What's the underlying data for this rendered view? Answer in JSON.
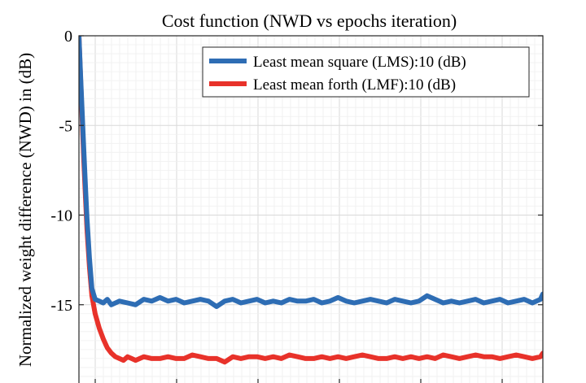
{
  "chart_data": {
    "type": "line",
    "title": "Cost function (NWD vs epochs iteration)",
    "xlabel": "",
    "ylabel": "Normalized weight difference (NWD) in (dB)",
    "ylim": [
      -19,
      0
    ],
    "yticks": [
      0,
      -5,
      -10,
      -15
    ],
    "ytick_labels": [
      "0",
      "-5",
      "-10",
      "-15"
    ],
    "grid": true,
    "legend_position": "top-right",
    "series": [
      {
        "name": "Least mean square (LMS):10 (dB)",
        "color": "#2e6db4",
        "x": [
          0,
          2,
          4,
          6,
          8,
          10,
          13,
          16,
          20,
          25,
          30,
          35,
          40,
          50,
          60,
          70,
          80,
          90,
          100,
          110,
          120,
          130,
          140,
          150,
          160,
          170,
          180,
          190,
          200,
          210,
          220,
          230,
          240,
          250,
          260,
          270,
          280,
          290,
          300,
          310,
          320,
          330,
          340,
          350,
          360,
          370,
          380,
          390,
          400,
          410,
          420,
          430,
          440,
          450,
          460,
          470,
          480,
          490,
          500,
          510,
          520,
          530,
          540,
          550,
          560,
          570,
          573
        ],
        "y": [
          0,
          -2.2,
          -4.3,
          -6.4,
          -8.4,
          -10.2,
          -12.4,
          -14.1,
          -14.7,
          -14.8,
          -14.9,
          -14.7,
          -15.0,
          -14.8,
          -14.9,
          -15.0,
          -14.7,
          -14.8,
          -14.6,
          -14.8,
          -14.7,
          -14.9,
          -14.8,
          -14.7,
          -14.8,
          -15.1,
          -14.8,
          -14.7,
          -14.9,
          -14.8,
          -14.7,
          -14.9,
          -14.8,
          -14.9,
          -14.7,
          -14.8,
          -14.8,
          -14.7,
          -14.9,
          -14.8,
          -14.6,
          -14.8,
          -14.9,
          -14.8,
          -14.7,
          -14.8,
          -14.9,
          -14.7,
          -14.8,
          -14.9,
          -14.8,
          -14.5,
          -14.7,
          -14.9,
          -14.8,
          -14.9,
          -14.8,
          -14.7,
          -14.9,
          -14.8,
          -14.7,
          -14.9,
          -14.8,
          -14.7,
          -14.9,
          -14.7,
          -14.4
        ]
      },
      {
        "name": "Least mean forth (LMF):10 (dB)",
        "color": "#e8322a",
        "x": [
          0,
          2,
          4,
          6,
          8,
          10,
          13,
          16,
          20,
          25,
          30,
          35,
          40,
          45,
          50,
          55,
          60,
          65,
          70,
          80,
          90,
          100,
          110,
          120,
          130,
          140,
          150,
          160,
          170,
          180,
          190,
          200,
          210,
          220,
          230,
          240,
          250,
          260,
          270,
          280,
          290,
          300,
          310,
          320,
          330,
          340,
          350,
          360,
          370,
          380,
          390,
          400,
          410,
          420,
          430,
          440,
          450,
          460,
          470,
          480,
          490,
          500,
          510,
          520,
          530,
          540,
          550,
          560,
          570,
          573
        ],
        "y": [
          0,
          -2.4,
          -4.7,
          -7.0,
          -9.0,
          -10.8,
          -12.9,
          -14.5,
          -15.5,
          -16.3,
          -16.9,
          -17.4,
          -17.7,
          -17.9,
          -18.0,
          -18.1,
          -17.9,
          -18.0,
          -18.1,
          -17.9,
          -18.0,
          -18.0,
          -17.9,
          -18.0,
          -18.0,
          -17.8,
          -17.9,
          -18.0,
          -18.0,
          -18.2,
          -17.9,
          -18.0,
          -17.9,
          -17.9,
          -18.0,
          -17.9,
          -18.0,
          -17.8,
          -17.9,
          -18.0,
          -18.0,
          -17.9,
          -18.0,
          -17.9,
          -18.0,
          -17.9,
          -17.8,
          -17.9,
          -18.0,
          -18.0,
          -17.9,
          -18.0,
          -17.9,
          -18.0,
          -17.9,
          -18.0,
          -17.8,
          -17.9,
          -18.0,
          -17.9,
          -17.8,
          -17.9,
          -17.9,
          -18.0,
          -17.9,
          -17.8,
          -17.9,
          -18.0,
          -17.9,
          -17.7
        ]
      }
    ]
  }
}
